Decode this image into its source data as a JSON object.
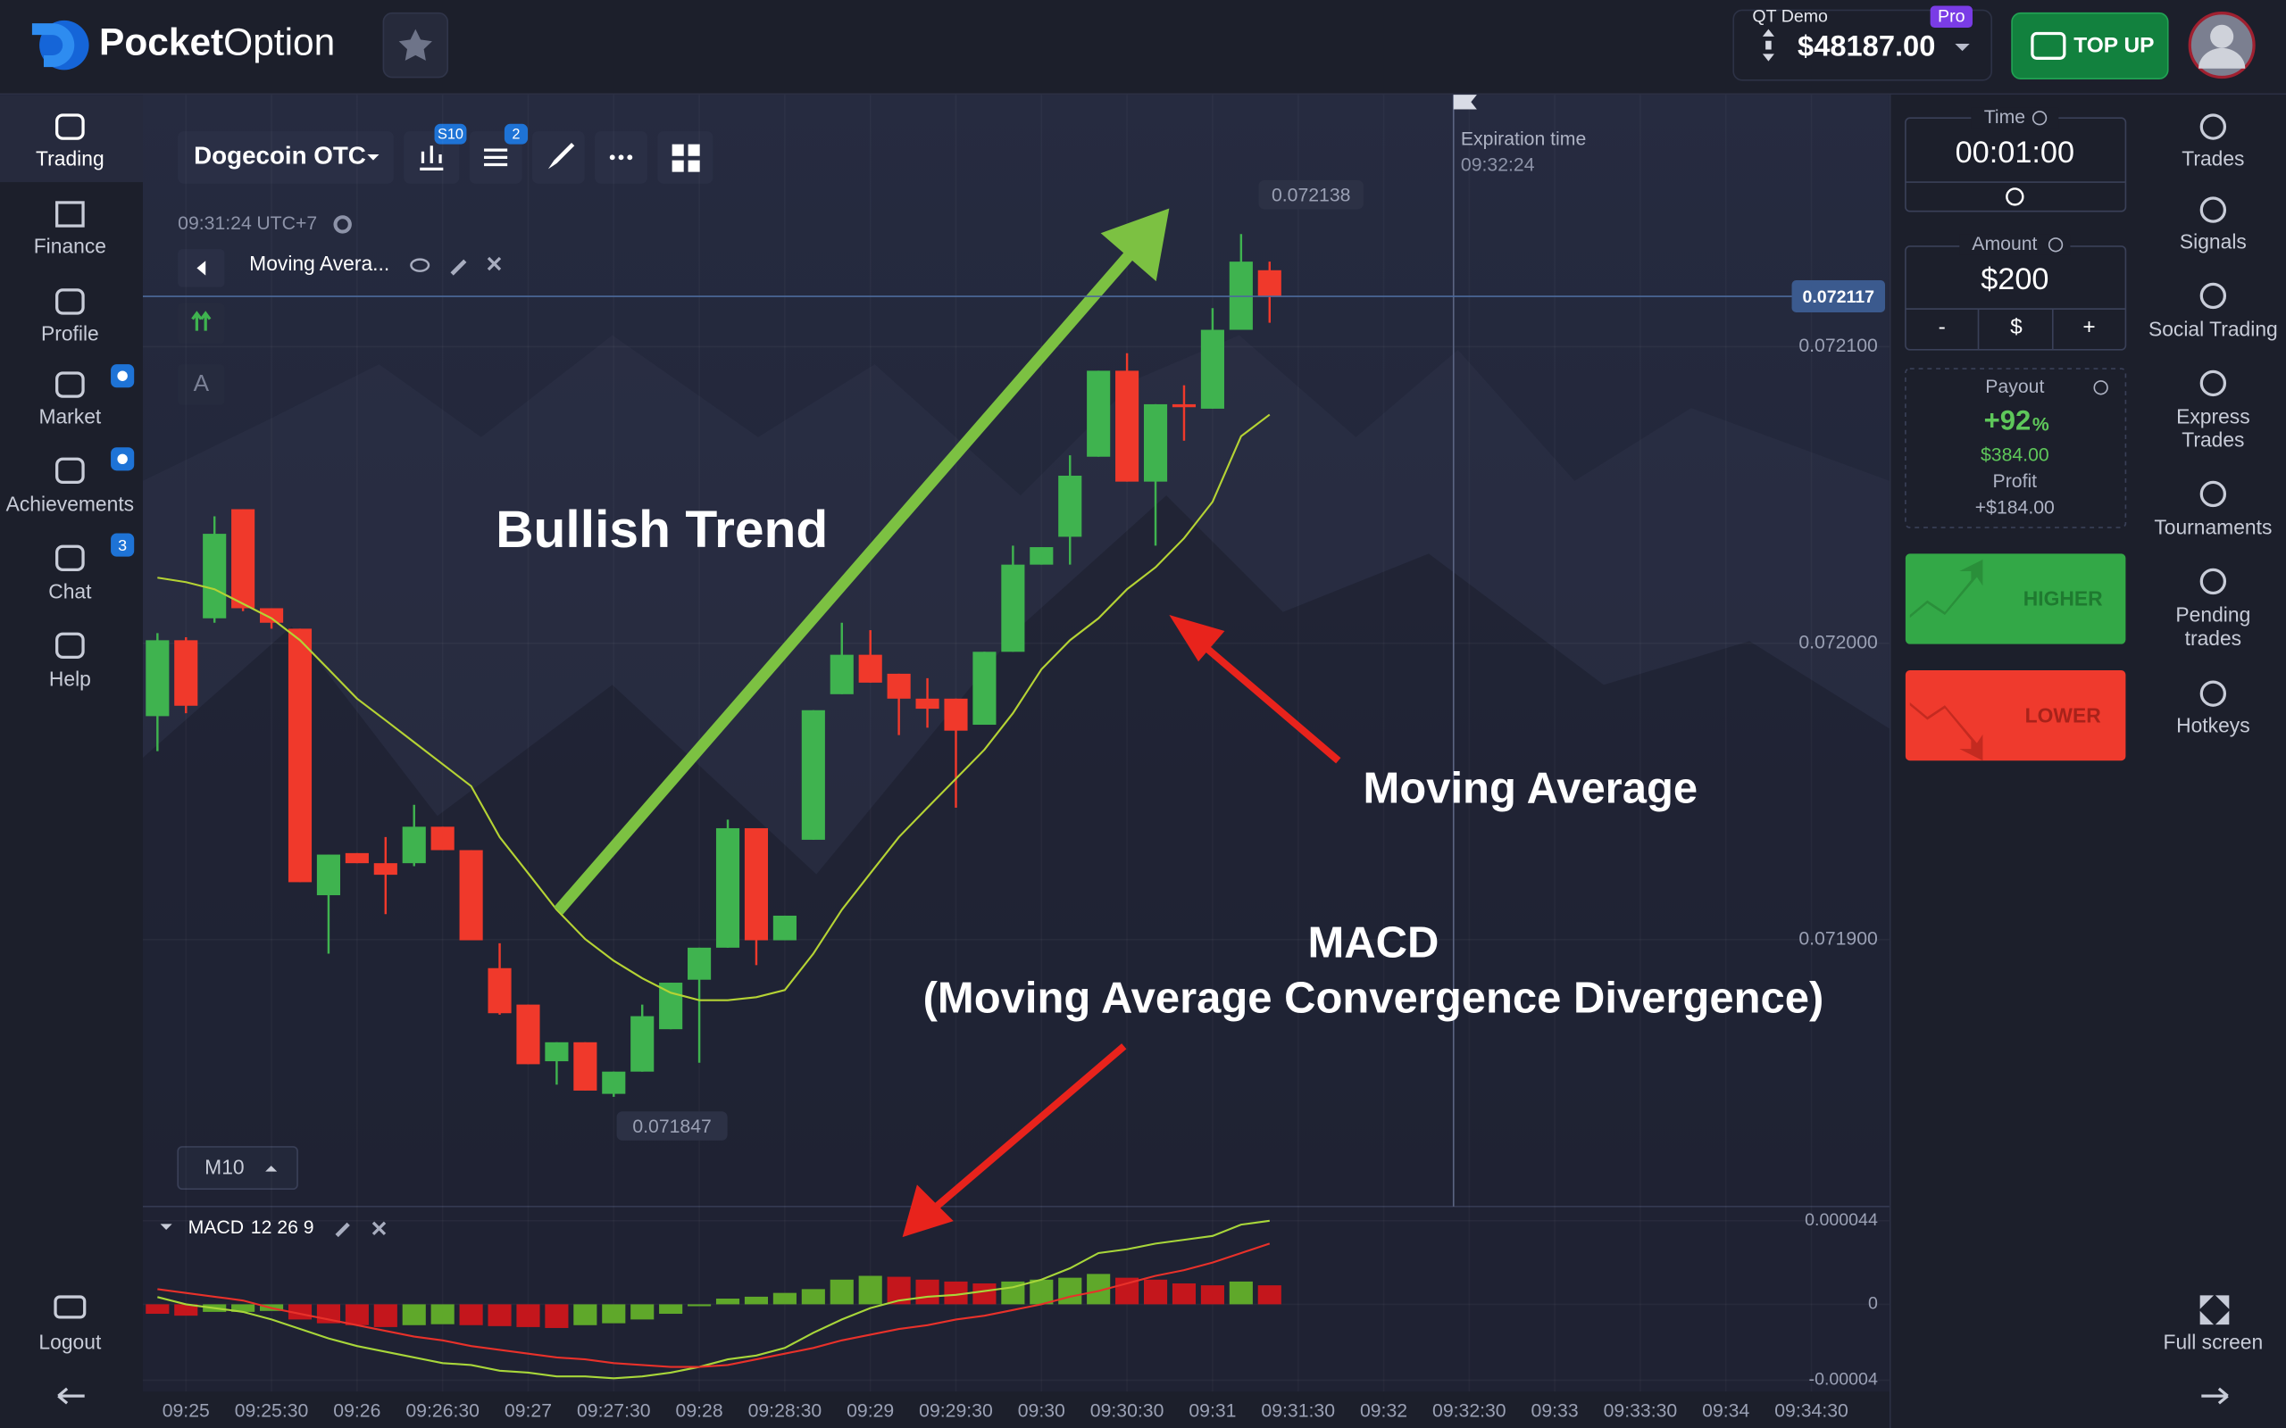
{
  "header": {
    "logo_bold": "Pocket",
    "logo_light": "Option",
    "account_type": "QT Demo",
    "badge": "Pro",
    "balance": "$48187.00",
    "top_up": "TOP UP"
  },
  "sidebar": {
    "items": [
      "Trading",
      "Finance",
      "Profile",
      "Market",
      "Achievements",
      "Chat",
      "Help"
    ],
    "chat_badge": "3",
    "logout": "Logout"
  },
  "toolbar": {
    "asset": "Dogecoin OTC",
    "chart_badge": "S10",
    "indicator_badge": "2",
    "time": "09:31:24",
    "timezone": "UTC+7",
    "indicator": "Moving Avera...",
    "drawing_tool": "A",
    "timeframe": "M10"
  },
  "chart": {
    "ylim": [
      0.07181,
      0.072185
    ],
    "yticks": [
      {
        "value": 0.0721,
        "label": "0.072100"
      },
      {
        "value": 0.072,
        "label": "0.072000"
      },
      {
        "value": 0.0719,
        "label": "0.071900"
      }
    ],
    "current_price": 0.072117,
    "high": 0.072138,
    "low": 0.071847,
    "expiration_label": "Expiration time",
    "expiration_time": "09:32:24",
    "up_color": "#3fb34f",
    "down_color": "#f0392b",
    "ma_color": "#b5d334",
    "candles": [
      [
        0.0719754,
        0.0720034,
        0.0719636,
        0.072001
      ],
      [
        0.072001,
        0.072002,
        0.0719764,
        0.0719789
      ],
      [
        0.0720084,
        0.0720428,
        0.0720069,
        0.0720369
      ],
      [
        0.0720452,
        0.0720452,
        0.0720108,
        0.0720118
      ],
      [
        0.0720118,
        0.0720118,
        0.0720049,
        0.0720069
      ],
      [
        0.0720049,
        0.0720049,
        0.0719194,
        0.0719194
      ],
      [
        0.071915,
        0.0719287,
        0.0718953,
        0.0719287
      ],
      [
        0.0719292,
        0.0719292,
        0.0719258,
        0.0719258
      ],
      [
        0.0719258,
        0.0719346,
        0.0719086,
        0.0719219
      ],
      [
        0.0719258,
        0.0719455,
        0.0719248,
        0.0719381
      ],
      [
        0.0719381,
        0.0719381,
        0.0719302,
        0.0719302
      ],
      [
        0.0719302,
        0.0719302,
        0.0718998,
        0.0718998
      ],
      [
        0.0718904,
        0.0718988,
        0.0718747,
        0.0718752
      ],
      [
        0.0718781,
        0.0718781,
        0.071858,
        0.071858
      ],
      [
        0.071859,
        0.0718654,
        0.0718511,
        0.0718654
      ],
      [
        0.0718654,
        0.0718654,
        0.0718491,
        0.0718491
      ],
      [
        0.071848,
        0.0718555,
        0.071847,
        0.0718555
      ],
      [
        0.0718555,
        0.0718781,
        0.0718555,
        0.0718742
      ],
      [
        0.0718698,
        0.0718855,
        0.0718698,
        0.0718855
      ],
      [
        0.0718865,
        0.0718973,
        0.0718585,
        0.0718973
      ],
      [
        0.0718973,
        0.0719405,
        0.0718973,
        0.0719376
      ],
      [
        0.0719376,
        0.0719376,
        0.0718914,
        0.0718998
      ],
      [
        0.0718998,
        0.0719081,
        0.0718998,
        0.0719081
      ],
      [
        0.0719337,
        0.0719774,
        0.0719337,
        0.0719774
      ],
      [
        0.0719828,
        0.0720069,
        0.0719828,
        0.0719961
      ],
      [
        0.0719961,
        0.0720044,
        0.0719867,
        0.0719867
      ],
      [
        0.0719897,
        0.0719897,
        0.071969,
        0.0719813
      ],
      [
        0.0719813,
        0.0719882,
        0.0719715,
        0.0719779
      ],
      [
        0.0719813,
        0.0719813,
        0.0719445,
        0.0719705
      ],
      [
        0.0719725,
        0.0719971,
        0.0719725,
        0.0719971
      ],
      [
        0.0719971,
        0.0720329,
        0.0719971,
        0.0720265
      ],
      [
        0.0720265,
        0.0720324,
        0.0720265,
        0.0720324
      ],
      [
        0.0720359,
        0.0720634,
        0.0720265,
        0.0720565
      ],
      [
        0.0720629,
        0.0720919,
        0.0720629,
        0.0720919
      ],
      [
        0.0720919,
        0.0720978,
        0.0720545,
        0.0720545
      ],
      [
        0.0720545,
        0.0720806,
        0.0720329,
        0.0720806
      ],
      [
        0.0720806,
        0.072087,
        0.0720683,
        0.0720796
      ],
      [
        0.0720791,
        0.072113,
        0.0720791,
        0.0721057
      ],
      [
        0.0721057,
        0.072138,
        0.0721057,
        0.0721287
      ],
      [
        0.0721258,
        0.0721287,
        0.0721081,
        0.072117
      ]
    ],
    "moving_average": [
      0.0720221,
      0.0720206,
      0.0720182,
      0.0720133,
      0.0720084,
      0.072001,
      0.0719912,
      0.0719813,
      0.071974,
      0.0719666,
      0.0719592,
      0.0719518,
      0.0719346,
      0.0719224,
      0.0719101,
      0.0719002,
      0.0718929,
      0.071887,
      0.0718821,
      0.0718796,
      0.0718796,
      0.0718806,
      0.071883,
      0.0718953,
      0.0719101,
      0.0719224,
      0.0719346,
      0.0719445,
      0.0719543,
      0.0719641,
      0.0719764,
      0.0719912,
      0.072001,
      0.0720084,
      0.0720182,
      0.0720256,
      0.0720354,
      0.0720477,
      0.0720698,
      0.0720771
    ]
  },
  "macd": {
    "label": "MACD",
    "params": "12 26 9",
    "ylim": [
      -4.6e-05,
      5e-05
    ],
    "yticks": [
      4.4e-05,
      0,
      -4e-05
    ],
    "up_color": "#5fa82a",
    "down_color": "#c4161c",
    "macd_color": "#a8d63a",
    "signal_color": "#e8312a",
    "histogram": [
      -5e-06,
      -6e-06,
      -4e-06,
      -4e-06,
      -3.5e-06,
      -8e-06,
      -1e-05,
      -1.1e-05,
      -1.2e-05,
      -1.1e-05,
      -1.05e-05,
      -1.1e-05,
      -1.15e-05,
      -1.2e-05,
      -1.25e-05,
      -1.1e-05,
      -1e-05,
      -8e-06,
      -5e-06,
      -1e-06,
      3e-06,
      4e-06,
      6e-06,
      8e-06,
      1.3e-05,
      1.5e-05,
      1.45e-05,
      1.3e-05,
      1.2e-05,
      1.1e-05,
      1.2e-05,
      1.3e-05,
      1.4e-05,
      1.6e-05,
      1.4e-05,
      1.3e-05,
      1.1e-05,
      1e-05,
      1.2e-05,
      1e-05
    ],
    "macd_line": [
      3.8e-06,
      0,
      -2e-06,
      -4e-06,
      -8e-06,
      -1.3e-05,
      -1.8e-05,
      -2.2e-05,
      -2.5e-05,
      -2.8e-05,
      -3.1e-05,
      -3.2e-05,
      -3.5e-05,
      -3.6e-05,
      -3.8e-05,
      -3.8e-05,
      -3.9e-05,
      -3.8e-05,
      -3.6e-05,
      -3.3e-05,
      -2.9e-05,
      -2.7e-05,
      -2.3e-05,
      -1.5e-05,
      -8e-06,
      -2e-06,
      2e-06,
      4e-06,
      5e-06,
      7e-06,
      9e-06,
      1.3e-05,
      1.9e-05,
      2.7e-05,
      2.9e-05,
      3.2e-05,
      3.4e-05,
      3.6e-05,
      4.2e-05,
      4.4e-05
    ],
    "signal_line": [
      8e-06,
      6e-06,
      4e-06,
      2e-06,
      -2e-06,
      -5e-06,
      -8e-06,
      -1.1e-05,
      -1.4e-05,
      -1.7e-05,
      -1.9e-05,
      -2.2e-05,
      -2.4e-05,
      -2.6e-05,
      -2.8e-05,
      -2.9e-05,
      -3.1e-05,
      -3.2e-05,
      -3.3e-05,
      -3.3e-05,
      -3.2e-05,
      -2.9e-05,
      -2.6e-05,
      -2.3e-05,
      -1.9e-05,
      -1.6e-05,
      -1.3e-05,
      -1.1e-05,
      -8e-06,
      -6e-06,
      -3e-06,
      0,
      4e-06,
      7e-06,
      1.1e-05,
      1.5e-05,
      1.8e-05,
      2.2e-05,
      2.7e-05,
      3.2e-05
    ]
  },
  "time_axis": [
    "09:25",
    "09:25:30",
    "09:26",
    "09:26:30",
    "09:27",
    "09:27:30",
    "09:28",
    "09:28:30",
    "09:29",
    "09:29:30",
    "09:30",
    "09:30:30",
    "09:31",
    "09:31:30",
    "09:32",
    "09:32:30",
    "09:33",
    "09:33:30",
    "09:34",
    "09:34:30"
  ],
  "annotations": {
    "trend": "Bullish Trend",
    "moving_average": "Moving Average",
    "macd_title": "MACD",
    "macd_full": "(Moving Average Convergence Divergence)"
  },
  "trade_panel": {
    "time_label": "Time",
    "time": "00:01:00",
    "amount_label": "Amount",
    "amount": "$200",
    "minus": "-",
    "currency": "$",
    "plus": "+",
    "payout_label": "Payout",
    "payout": "+92",
    "payout_unit": "%",
    "payout_amount": "$384.00",
    "profit_label": "Profit",
    "profit": "+$184.00",
    "higher": "HIGHER",
    "lower": "LOWER"
  },
  "right_sidebar": {
    "items": [
      [
        "Trades"
      ],
      [
        "Signals"
      ],
      [
        "Social Trading"
      ],
      [
        "Express",
        "Trades"
      ],
      [
        "Tournaments"
      ],
      [
        "Pending",
        "trades"
      ],
      [
        "Hotkeys"
      ]
    ],
    "full_screen": "Full screen"
  }
}
